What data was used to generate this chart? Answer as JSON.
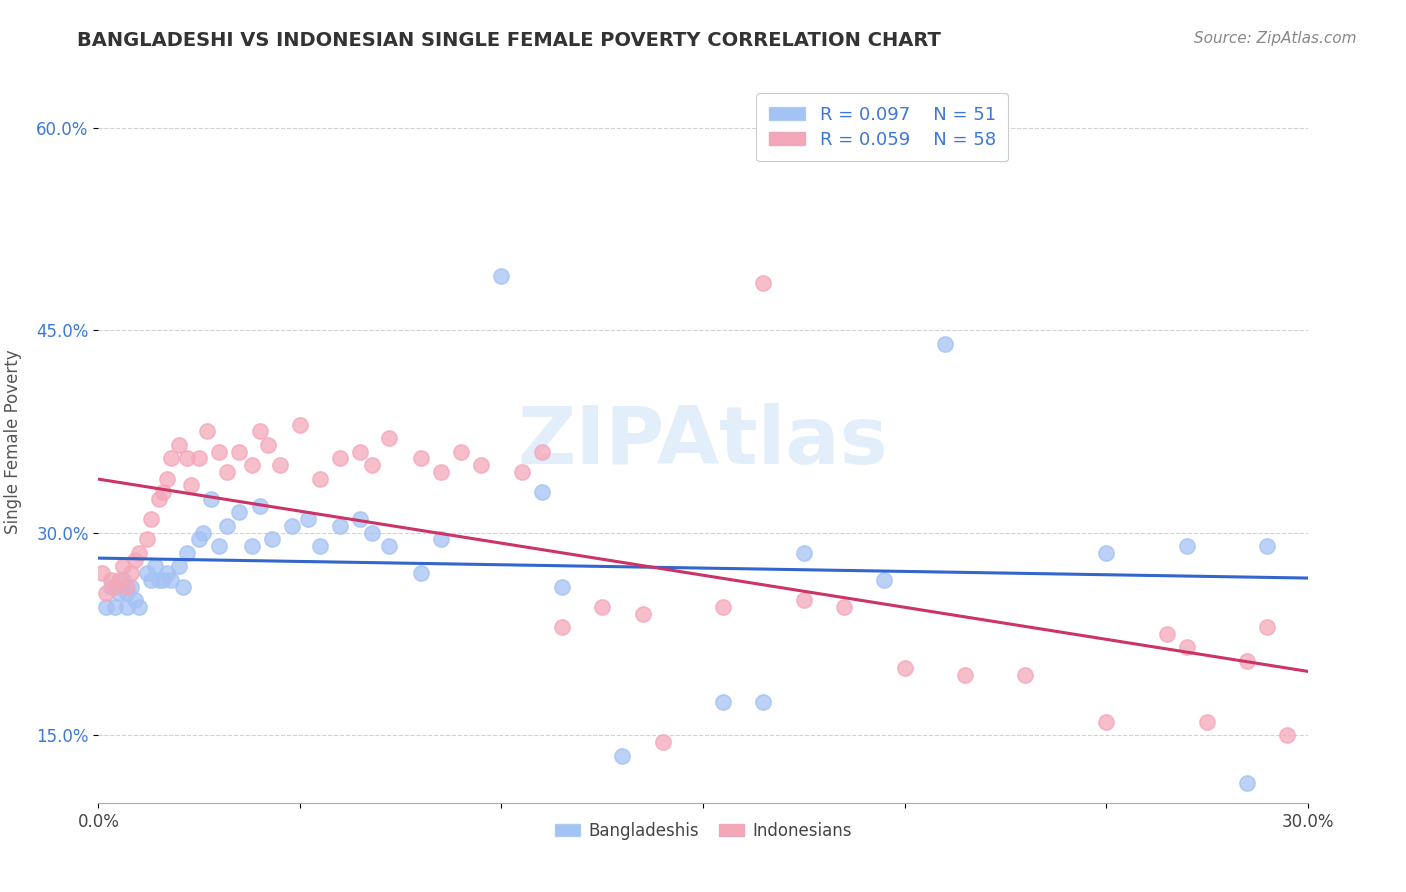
{
  "title": "BANGLADESHI VS INDONESIAN SINGLE FEMALE POVERTY CORRELATION CHART",
  "source": "Source: ZipAtlas.com",
  "ylabel": "Single Female Poverty",
  "watermark": "ZIPAtlas",
  "xlim": [
    0.0,
    0.3
  ],
  "ylim": [
    0.1,
    0.635
  ],
  "yticks": [
    0.15,
    0.3,
    0.45,
    0.6
  ],
  "xticks": [
    0.0,
    0.05,
    0.1,
    0.15,
    0.2,
    0.25,
    0.3
  ],
  "xtick_labels": [
    "0.0%",
    "",
    "",
    "",
    "",
    "",
    "30.0%"
  ],
  "ytick_labels": [
    "15.0%",
    "30.0%",
    "45.0%",
    "60.0%"
  ],
  "blue_R": 0.097,
  "blue_N": 51,
  "pink_R": 0.059,
  "pink_N": 58,
  "blue_color": "#a4c2f4",
  "pink_color": "#f4a7b9",
  "blue_line_color": "#3366cc",
  "pink_line_color": "#cc3366",
  "background_color": "#ffffff",
  "title_color": "#333333",
  "source_color": "#888888",
  "legend_R_color": "#3c78d8",
  "grid_color": "#cccccc",
  "blue_x": [
    0.002,
    0.003,
    0.004,
    0.005,
    0.006,
    0.007,
    0.007,
    0.008,
    0.009,
    0.01,
    0.012,
    0.013,
    0.014,
    0.015,
    0.016,
    0.017,
    0.018,
    0.02,
    0.021,
    0.022,
    0.025,
    0.026,
    0.028,
    0.03,
    0.032,
    0.035,
    0.038,
    0.04,
    0.043,
    0.048,
    0.052,
    0.055,
    0.06,
    0.065,
    0.068,
    0.072,
    0.08,
    0.085,
    0.1,
    0.11,
    0.115,
    0.13,
    0.155,
    0.165,
    0.175,
    0.195,
    0.21,
    0.25,
    0.27,
    0.285,
    0.29
  ],
  "blue_y": [
    0.245,
    0.26,
    0.245,
    0.255,
    0.265,
    0.245,
    0.255,
    0.26,
    0.25,
    0.245,
    0.27,
    0.265,
    0.275,
    0.265,
    0.265,
    0.27,
    0.265,
    0.275,
    0.26,
    0.285,
    0.295,
    0.3,
    0.325,
    0.29,
    0.305,
    0.315,
    0.29,
    0.32,
    0.295,
    0.305,
    0.31,
    0.29,
    0.305,
    0.31,
    0.3,
    0.29,
    0.27,
    0.295,
    0.49,
    0.33,
    0.26,
    0.135,
    0.175,
    0.175,
    0.285,
    0.265,
    0.44,
    0.285,
    0.29,
    0.115,
    0.29
  ],
  "pink_x": [
    0.001,
    0.002,
    0.003,
    0.004,
    0.005,
    0.006,
    0.007,
    0.008,
    0.009,
    0.01,
    0.012,
    0.013,
    0.015,
    0.016,
    0.017,
    0.018,
    0.02,
    0.022,
    0.023,
    0.025,
    0.027,
    0.03,
    0.032,
    0.035,
    0.038,
    0.04,
    0.042,
    0.045,
    0.05,
    0.055,
    0.06,
    0.065,
    0.068,
    0.072,
    0.08,
    0.085,
    0.09,
    0.095,
    0.105,
    0.11,
    0.115,
    0.125,
    0.135,
    0.14,
    0.155,
    0.165,
    0.175,
    0.185,
    0.2,
    0.215,
    0.23,
    0.25,
    0.265,
    0.27,
    0.275,
    0.285,
    0.29,
    0.295
  ],
  "pink_y": [
    0.27,
    0.255,
    0.265,
    0.26,
    0.265,
    0.275,
    0.26,
    0.27,
    0.28,
    0.285,
    0.295,
    0.31,
    0.325,
    0.33,
    0.34,
    0.355,
    0.365,
    0.355,
    0.335,
    0.355,
    0.375,
    0.36,
    0.345,
    0.36,
    0.35,
    0.375,
    0.365,
    0.35,
    0.38,
    0.34,
    0.355,
    0.36,
    0.35,
    0.37,
    0.355,
    0.345,
    0.36,
    0.35,
    0.345,
    0.36,
    0.23,
    0.245,
    0.24,
    0.145,
    0.245,
    0.485,
    0.25,
    0.245,
    0.2,
    0.195,
    0.195,
    0.16,
    0.225,
    0.215,
    0.16,
    0.205,
    0.23,
    0.15
  ]
}
